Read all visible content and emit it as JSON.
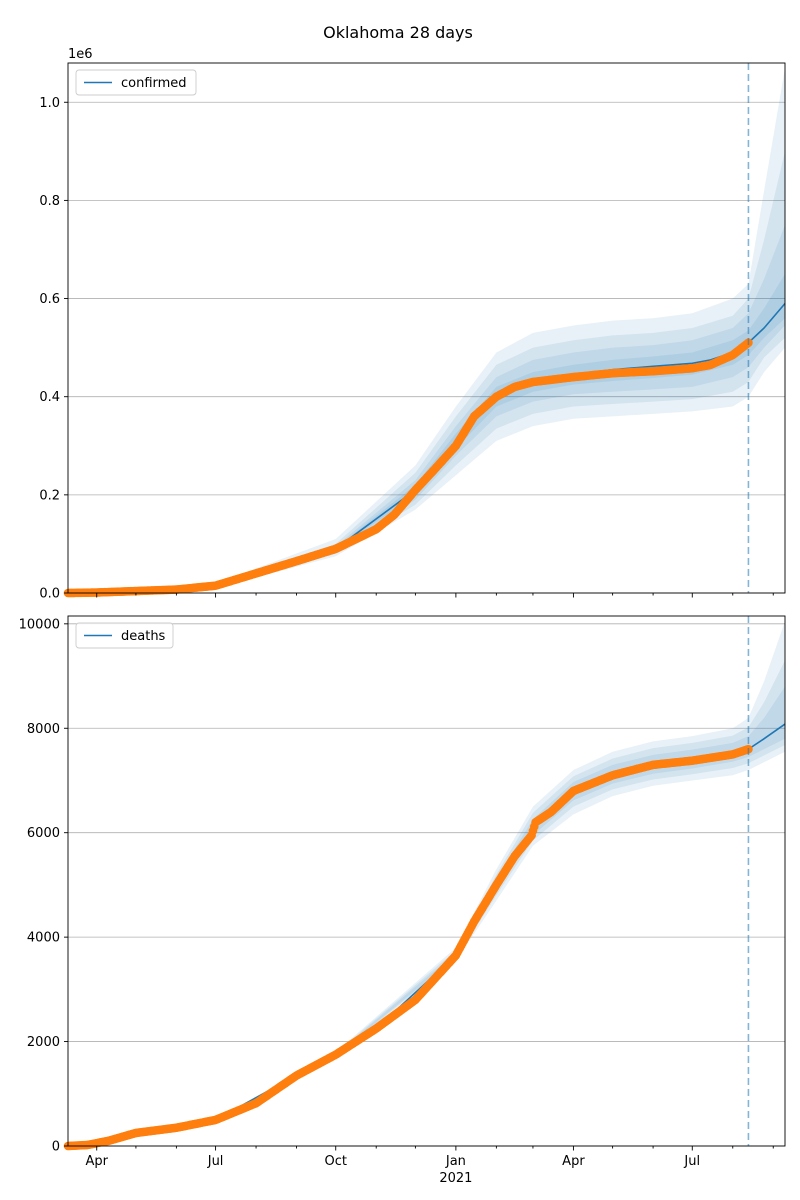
{
  "figure": {
    "title": "Oklahoma 28 days"
  },
  "chart_data": [
    {
      "type": "line",
      "series_name": "confirmed",
      "y_scale_label": "1e6",
      "yticks": [
        0.0,
        0.2,
        0.4,
        0.6,
        0.8,
        1.0
      ],
      "ytick_labels": [
        "0.0",
        "0.2",
        "0.4",
        "0.6",
        "0.8",
        "1.0"
      ],
      "ylim": [
        0,
        1.08
      ],
      "xlim": [
        "2020-03-10",
        "2021-09-10"
      ],
      "grid": "y",
      "legend": "top-left",
      "forecast_start": "2021-08-13",
      "observed": {
        "x": [
          "2020-03-10",
          "2020-04-01",
          "2020-05-01",
          "2020-06-01",
          "2020-07-01",
          "2020-08-01",
          "2020-09-01",
          "2020-10-01",
          "2020-11-01",
          "2020-11-15",
          "2020-12-01",
          "2020-12-15",
          "2021-01-01",
          "2021-01-15",
          "2021-02-01",
          "2021-02-15",
          "2021-03-01",
          "2021-04-01",
          "2021-05-01",
          "2021-06-01",
          "2021-07-01",
          "2021-07-15",
          "2021-08-01",
          "2021-08-13"
        ],
        "y": [
          0.0,
          0.001,
          0.004,
          0.007,
          0.015,
          0.04,
          0.065,
          0.09,
          0.13,
          0.16,
          0.21,
          0.25,
          0.3,
          0.36,
          0.4,
          0.42,
          0.43,
          0.44,
          0.448,
          0.452,
          0.458,
          0.465,
          0.485,
          0.51
        ]
      },
      "fit": {
        "x": [
          "2020-03-10",
          "2020-07-01",
          "2020-10-01",
          "2020-12-01",
          "2021-01-01",
          "2021-02-01",
          "2021-03-01",
          "2021-04-01",
          "2021-05-01",
          "2021-06-01",
          "2021-07-01",
          "2021-07-15",
          "2021-08-01",
          "2021-08-13",
          "2021-08-25",
          "2021-09-10"
        ],
        "y": [
          0.0,
          0.015,
          0.09,
          0.21,
          0.31,
          0.4,
          0.43,
          0.445,
          0.455,
          0.462,
          0.468,
          0.475,
          0.49,
          0.51,
          0.54,
          0.59
        ]
      },
      "bands": [
        {
          "x": [
            "2020-03-10",
            "2020-07-01",
            "2020-10-01",
            "2020-12-01",
            "2021-01-01",
            "2021-02-01",
            "2021-03-01",
            "2021-04-01",
            "2021-05-01",
            "2021-06-01",
            "2021-07-01",
            "2021-08-01",
            "2021-08-13",
            "2021-08-25",
            "2021-09-10"
          ],
          "lower": [
            0,
            0.01,
            0.075,
            0.17,
            0.24,
            0.31,
            0.34,
            0.355,
            0.36,
            0.365,
            0.37,
            0.38,
            0.4,
            0.45,
            0.5
          ],
          "upper": [
            0,
            0.02,
            0.11,
            0.26,
            0.38,
            0.49,
            0.53,
            0.545,
            0.555,
            0.56,
            0.57,
            0.6,
            0.63,
            0.82,
            1.07
          ]
        },
        {
          "x": [
            "2020-03-10",
            "2020-07-01",
            "2020-10-01",
            "2020-12-01",
            "2021-01-01",
            "2021-02-01",
            "2021-03-01",
            "2021-04-01",
            "2021-05-01",
            "2021-06-01",
            "2021-07-01",
            "2021-08-01",
            "2021-08-13",
            "2021-08-25",
            "2021-09-10"
          ],
          "lower": [
            0,
            0.012,
            0.08,
            0.18,
            0.26,
            0.335,
            0.365,
            0.38,
            0.385,
            0.39,
            0.395,
            0.41,
            0.43,
            0.48,
            0.52
          ],
          "upper": [
            0,
            0.018,
            0.1,
            0.245,
            0.36,
            0.465,
            0.5,
            0.515,
            0.525,
            0.53,
            0.54,
            0.565,
            0.6,
            0.72,
            0.9
          ]
        },
        {
          "x": [
            "2020-03-10",
            "2020-07-01",
            "2020-10-01",
            "2020-12-01",
            "2021-01-01",
            "2021-02-01",
            "2021-03-01",
            "2021-04-01",
            "2021-05-01",
            "2021-06-01",
            "2021-07-01",
            "2021-08-01",
            "2021-08-13",
            "2021-08-25",
            "2021-09-10"
          ],
          "lower": [
            0,
            0.013,
            0.085,
            0.19,
            0.28,
            0.36,
            0.39,
            0.405,
            0.41,
            0.415,
            0.42,
            0.44,
            0.46,
            0.5,
            0.545
          ],
          "upper": [
            0,
            0.017,
            0.095,
            0.23,
            0.34,
            0.44,
            0.475,
            0.49,
            0.5,
            0.505,
            0.515,
            0.54,
            0.57,
            0.64,
            0.75
          ]
        },
        {
          "x": [
            "2020-03-10",
            "2020-07-01",
            "2020-10-01",
            "2020-12-01",
            "2021-01-01",
            "2021-02-01",
            "2021-03-01",
            "2021-04-01",
            "2021-05-01",
            "2021-06-01",
            "2021-07-01",
            "2021-08-01",
            "2021-08-13",
            "2021-08-25",
            "2021-09-10"
          ],
          "lower": [
            0,
            0.014,
            0.088,
            0.2,
            0.295,
            0.38,
            0.41,
            0.425,
            0.432,
            0.438,
            0.445,
            0.465,
            0.485,
            0.52,
            0.56
          ],
          "upper": [
            0,
            0.016,
            0.092,
            0.22,
            0.325,
            0.42,
            0.45,
            0.465,
            0.475,
            0.482,
            0.49,
            0.515,
            0.535,
            0.58,
            0.65
          ]
        }
      ]
    },
    {
      "type": "line",
      "series_name": "deaths",
      "yticks": [
        0,
        2000,
        4000,
        6000,
        8000,
        10000
      ],
      "ytick_labels": [
        "0",
        "2000",
        "4000",
        "6000",
        "8000",
        "10000"
      ],
      "ylim": [
        0,
        10150
      ],
      "xlim": [
        "2020-03-10",
        "2021-09-10"
      ],
      "xtick_dates": [
        "2020-04-01",
        "2020-07-01",
        "2020-10-01",
        "2021-01-01",
        "2021-04-01",
        "2021-07-01"
      ],
      "xtick_labels": [
        "Apr",
        "Jul",
        "Oct",
        "Jan",
        "Apr",
        "Jul"
      ],
      "xtick_year_label": "2021",
      "grid": "y",
      "legend": "top-left",
      "forecast_start": "2021-08-13",
      "observed": {
        "x": [
          "2020-03-10",
          "2020-03-25",
          "2020-04-10",
          "2020-05-01",
          "2020-06-01",
          "2020-07-01",
          "2020-08-01",
          "2020-09-01",
          "2020-10-01",
          "2020-11-01",
          "2020-12-01",
          "2021-01-01",
          "2021-01-15",
          "2021-02-01",
          "2021-02-15",
          "2021-02-28",
          "2021-03-03",
          "2021-03-15",
          "2021-04-01",
          "2021-05-01",
          "2021-06-01",
          "2021-07-01",
          "2021-08-01",
          "2021-08-13"
        ],
        "y": [
          0,
          20,
          100,
          250,
          350,
          500,
          820,
          1350,
          1750,
          2250,
          2800,
          3650,
          4300,
          5000,
          5550,
          5950,
          6200,
          6400,
          6800,
          7100,
          7300,
          7380,
          7500,
          7600
        ]
      },
      "fit": {
        "x": [
          "2020-03-10",
          "2020-05-01",
          "2020-07-01",
          "2020-09-01",
          "2020-11-01",
          "2021-01-01",
          "2021-02-01",
          "2021-03-01",
          "2021-04-01",
          "2021-05-01",
          "2021-06-01",
          "2021-07-01",
          "2021-08-01",
          "2021-08-13",
          "2021-08-25",
          "2021-09-10"
        ],
        "y": [
          0,
          250,
          500,
          1350,
          2250,
          3650,
          5000,
          6100,
          6800,
          7100,
          7300,
          7380,
          7500,
          7600,
          7800,
          8080
        ]
      },
      "bands": [
        {
          "x": [
            "2020-03-10",
            "2020-07-01",
            "2020-10-01",
            "2021-01-01",
            "2021-02-01",
            "2021-03-01",
            "2021-04-01",
            "2021-05-01",
            "2021-06-01",
            "2021-07-01",
            "2021-08-01",
            "2021-08-13",
            "2021-08-25",
            "2021-09-10"
          ],
          "lower": [
            0,
            480,
            1700,
            3550,
            4700,
            5750,
            6350,
            6700,
            6900,
            7000,
            7100,
            7200,
            7350,
            7550
          ],
          "upper": [
            0,
            520,
            1800,
            3800,
            5300,
            6500,
            7200,
            7550,
            7750,
            7850,
            8000,
            8200,
            8900,
            10050
          ]
        },
        {
          "x": [
            "2020-03-10",
            "2020-07-01",
            "2020-10-01",
            "2021-01-01",
            "2021-02-01",
            "2021-03-01",
            "2021-04-01",
            "2021-05-01",
            "2021-06-01",
            "2021-07-01",
            "2021-08-01",
            "2021-08-13",
            "2021-08-25",
            "2021-09-10"
          ],
          "lower": [
            0,
            485,
            1720,
            3580,
            4800,
            5850,
            6500,
            6830,
            7020,
            7120,
            7240,
            7330,
            7480,
            7680
          ],
          "upper": [
            0,
            515,
            1780,
            3750,
            5200,
            6380,
            7080,
            7420,
            7620,
            7720,
            7860,
            8020,
            8500,
            9300
          ]
        },
        {
          "x": [
            "2020-03-10",
            "2020-07-01",
            "2020-10-01",
            "2021-01-01",
            "2021-02-01",
            "2021-03-01",
            "2021-04-01",
            "2021-05-01",
            "2021-06-01",
            "2021-07-01",
            "2021-08-01",
            "2021-08-13",
            "2021-08-25",
            "2021-09-10"
          ],
          "lower": [
            0,
            490,
            1735,
            3610,
            4880,
            5950,
            6620,
            6940,
            7130,
            7230,
            7360,
            7450,
            7600,
            7800
          ],
          "upper": [
            0,
            510,
            1765,
            3700,
            5120,
            6260,
            6970,
            7300,
            7490,
            7590,
            7720,
            7850,
            8200,
            8800
          ]
        }
      ]
    }
  ]
}
